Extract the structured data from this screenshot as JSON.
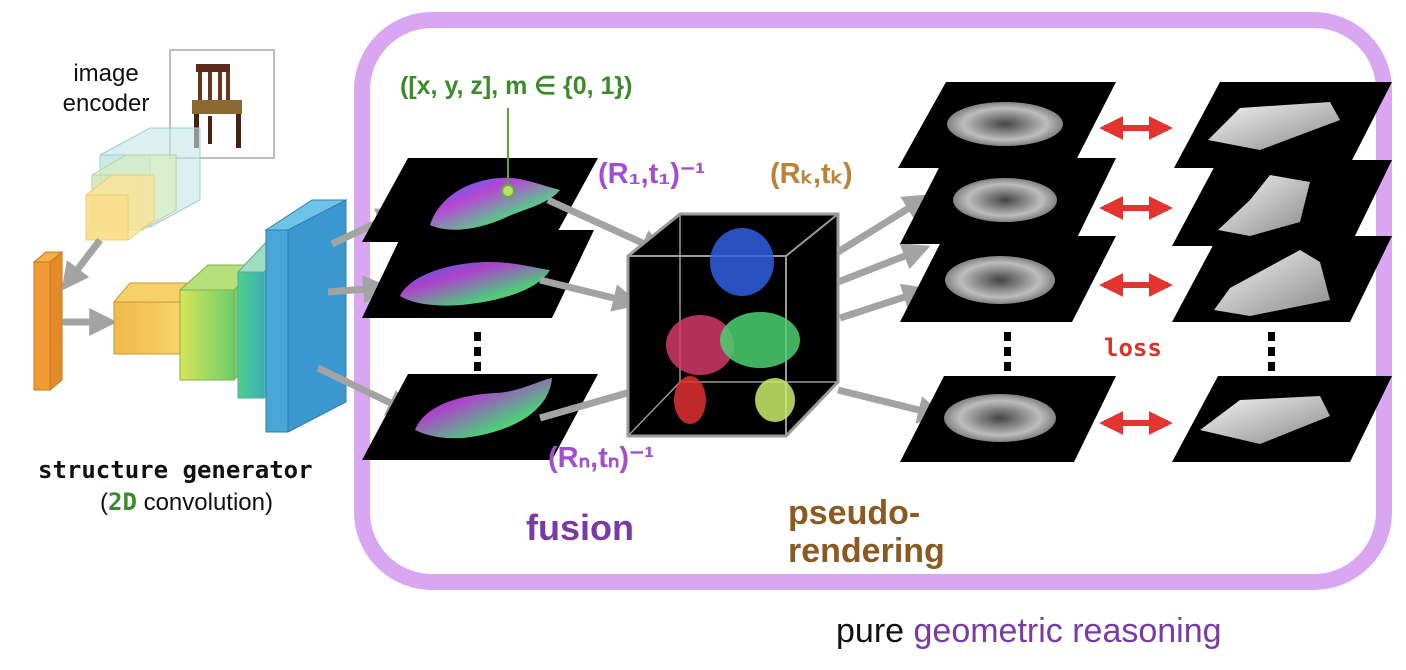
{
  "labels": {
    "image_encoder_line1": "image",
    "image_encoder_line2": "encoder",
    "structure_generator": "structure generator",
    "conv_open": "(",
    "conv_2d": "2D",
    "conv_rest": " convolution)",
    "point_tuple": "([x, y, z], m ∈ {0, 1})",
    "pose_1": "(R₁,t₁)⁻¹",
    "pose_k": "(Rₖ,tₖ)",
    "pose_n": "(Rₙ,tₙ)⁻¹",
    "fusion": "fusion",
    "pseudo_line1": "pseudo-",
    "pseudo_line2": "rendering",
    "loss": "loss",
    "footer_plain": "pure ",
    "footer_colored": "geometric reasoning"
  },
  "colors": {
    "region_border": "#d9a6f2",
    "purple_text": "#7a3aa6",
    "pose_purple": "#a14fd0",
    "brown_text": "#8a5a22",
    "green_text": "#3c8a2c",
    "loss_red": "#d8332b",
    "arrow_gray": "#a3a3a3",
    "double_arrow": "#e3342f"
  }
}
